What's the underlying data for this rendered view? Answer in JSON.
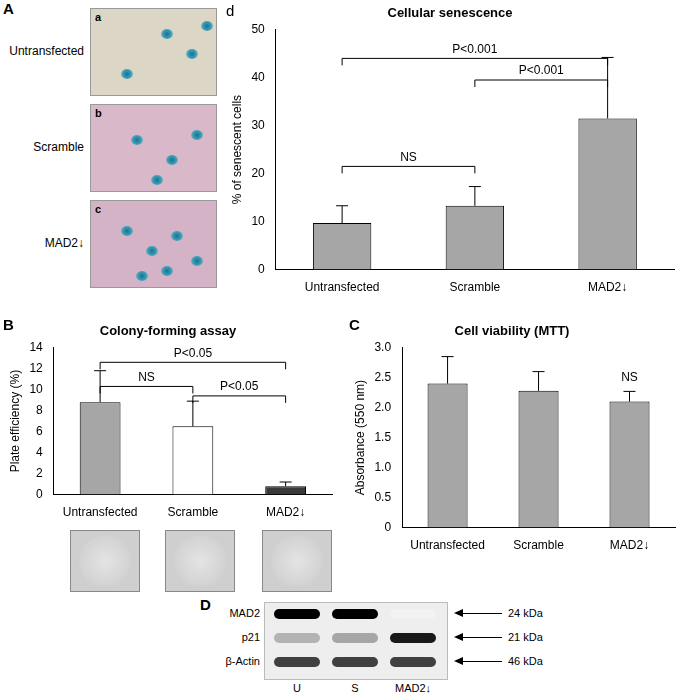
{
  "chart_data": [
    {
      "panel": "d",
      "type": "bar",
      "title": "Cellular senescence",
      "y_label": "% of senescent cells",
      "categories": [
        "Untransfected",
        "Scramble",
        "MAD2↓"
      ],
      "values": [
        9.7,
        13.3,
        31.5
      ],
      "errors": [
        3.6,
        4.0,
        12.7
      ],
      "color": "#a6a6a6",
      "ylim": [
        0,
        50
      ],
      "yticks": [
        0,
        10,
        20,
        30,
        40,
        50
      ],
      "grid": false,
      "brackets": [
        {
          "from": "Untransfected",
          "to": "MAD2↓",
          "y": 44,
          "label": "P<0.001"
        },
        {
          "from": "Scramble",
          "to": "MAD2↓",
          "y": 39.5,
          "label": "P<0.001"
        },
        {
          "from": "Untransfected",
          "to": "Scramble",
          "y": 21.5,
          "label": "NS"
        }
      ]
    },
    {
      "panel": "B",
      "type": "bar",
      "title": "Colony-forming assay",
      "y_label": "Plate efficiency (%)",
      "categories": [
        "Untransfected",
        "Scramble",
        "MAD2↓"
      ],
      "values": [
        8.8,
        6.5,
        0.8
      ],
      "errors": [
        3.0,
        2.4,
        0.4
      ],
      "colors": [
        "#a6a6a6",
        "#ffffff",
        "#3a3a3a"
      ],
      "ylim": [
        0,
        14
      ],
      "yticks": [
        0,
        2,
        4,
        6,
        8,
        10,
        12,
        14
      ],
      "grid": false,
      "brackets": [
        {
          "from": "Untransfected",
          "to": "MAD2↓",
          "y": 12.6,
          "label": "P<0.05"
        },
        {
          "from": "Untransfected",
          "to": "Scramble",
          "y": 10.3,
          "label": "NS"
        },
        {
          "from": "Scramble",
          "to": "MAD2↓",
          "y": 9.4,
          "label": "P<0.05"
        }
      ]
    },
    {
      "panel": "C",
      "type": "bar",
      "title": "Cell viability (MTT)",
      "y_label": "Absorbance (550 nm)",
      "categories": [
        "Untransfected",
        "Scramble",
        "MAD2↓"
      ],
      "values": [
        2.4,
        2.28,
        2.1
      ],
      "errors": [
        0.45,
        0.32,
        0.17
      ],
      "color": "#a6a6a6",
      "ylim": [
        0,
        3
      ],
      "yticks": [
        0,
        0.5,
        {
          "value": 1,
          "label": "1.0"
        },
        1.5,
        {
          "value": 2,
          "label": "2.0"
        },
        2.5,
        {
          "value": 3,
          "label": "3.0"
        }
      ],
      "grid": false,
      "brackets": [
        {
          "from": "MAD2↓",
          "to": "MAD2↓",
          "y": 2.35,
          "label": "NS"
        }
      ]
    }
  ],
  "images": {
    "panel": "A",
    "rows": [
      {
        "label": "Untransfected",
        "tag": "a"
      },
      {
        "label": "Scramble",
        "tag": "b"
      },
      {
        "label": "MAD2↓",
        "tag": "c"
      }
    ]
  },
  "blot": {
    "panel": "D",
    "rows": [
      {
        "label": "MAD2",
        "size": "24 kDa",
        "bands": [
          1,
          1,
          0.05
        ]
      },
      {
        "label": "p21",
        "size": "21 kDa",
        "bands": [
          0.3,
          0.35,
          0.9
        ]
      },
      {
        "label": "β-Actin",
        "size": "46 kDa",
        "bands": [
          0.75,
          0.75,
          0.75
        ]
      }
    ],
    "lanes": [
      "U",
      "S",
      "MAD2↓"
    ]
  }
}
